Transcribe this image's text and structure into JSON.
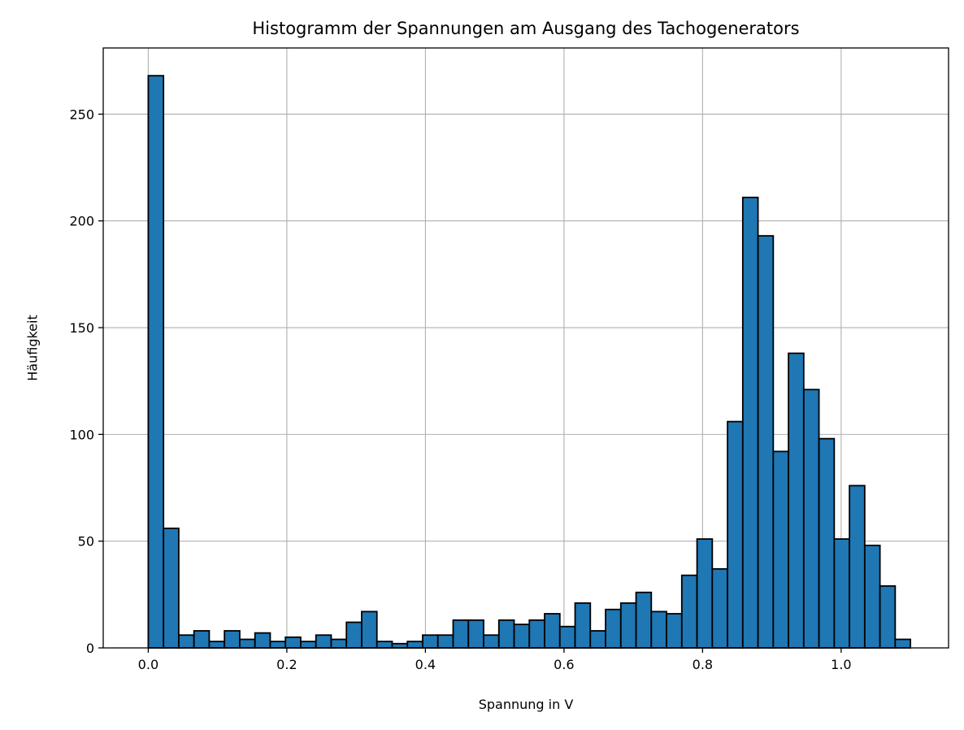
{
  "chart_data": {
    "type": "bar",
    "title": "Histogramm der Spannungen am Ausgang des Tachogenerators",
    "xlabel": "Spannung in V",
    "ylabel": "Häufigkeit",
    "xlim": [
      -0.065,
      1.155
    ],
    "ylim": [
      0,
      281
    ],
    "grid": true,
    "bar_color": "#1f77b4",
    "edge_color": "#000000",
    "xticks": [
      {
        "value": 0.0,
        "label": "0.0"
      },
      {
        "value": 0.2,
        "label": "0.2"
      },
      {
        "value": 0.4,
        "label": "0.4"
      },
      {
        "value": 0.6,
        "label": "0.6"
      },
      {
        "value": 0.8,
        "label": "0.8"
      },
      {
        "value": 1.0,
        "label": "1.0"
      }
    ],
    "yticks": [
      {
        "value": 0,
        "label": "0"
      },
      {
        "value": 50,
        "label": "50"
      },
      {
        "value": 100,
        "label": "100"
      },
      {
        "value": 150,
        "label": "150"
      },
      {
        "value": 200,
        "label": "200"
      },
      {
        "value": 250,
        "label": "250"
      }
    ],
    "bin_start": 0.0,
    "bin_width": 0.022,
    "values": [
      268,
      56,
      6,
      8,
      3,
      8,
      4,
      7,
      3,
      5,
      3,
      6,
      4,
      12,
      17,
      3,
      2,
      3,
      6,
      6,
      13,
      13,
      6,
      13,
      11,
      13,
      16,
      10,
      21,
      8,
      18,
      21,
      26,
      17,
      16,
      34,
      51,
      37,
      106,
      211,
      193,
      92,
      138,
      121,
      98,
      51,
      76,
      48,
      29,
      4
    ]
  }
}
